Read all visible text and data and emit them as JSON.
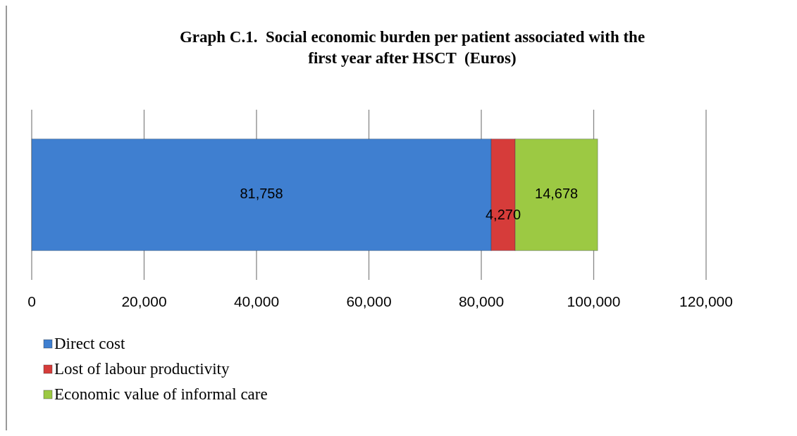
{
  "chart_data": {
    "type": "bar",
    "orientation": "horizontal",
    "stacked": true,
    "title": "Graph C.1.  Social economic burden per patient associated with the first year after HSCT  (Euros)",
    "categories": [
      null
    ],
    "series": [
      {
        "name": "Direct cost",
        "color": "#3f7fd0",
        "values": [
          81758
        ],
        "value_labels": [
          "81,758"
        ]
      },
      {
        "name": "Lost of labour productivity",
        "color": "#d63c3a",
        "values": [
          4270
        ],
        "value_labels": [
          "4,270"
        ]
      },
      {
        "name": "Economic value of informal care",
        "color": "#9cc943",
        "values": [
          14678
        ],
        "value_labels": [
          "14,678"
        ]
      }
    ],
    "xlim": [
      0,
      120000
    ],
    "xticks": [
      0,
      {
        "value": 20000,
        "label": "20,000"
      },
      {
        "value": 40000,
        "label": "40,000"
      },
      {
        "value": 60000,
        "label": "60,000"
      },
      {
        "value": 80000,
        "label": "80,000"
      },
      {
        "value": 100000,
        "label": "100,000"
      },
      {
        "value": 120000,
        "label": "120,000"
      }
    ],
    "grid": "x",
    "legend": "bottom left"
  }
}
